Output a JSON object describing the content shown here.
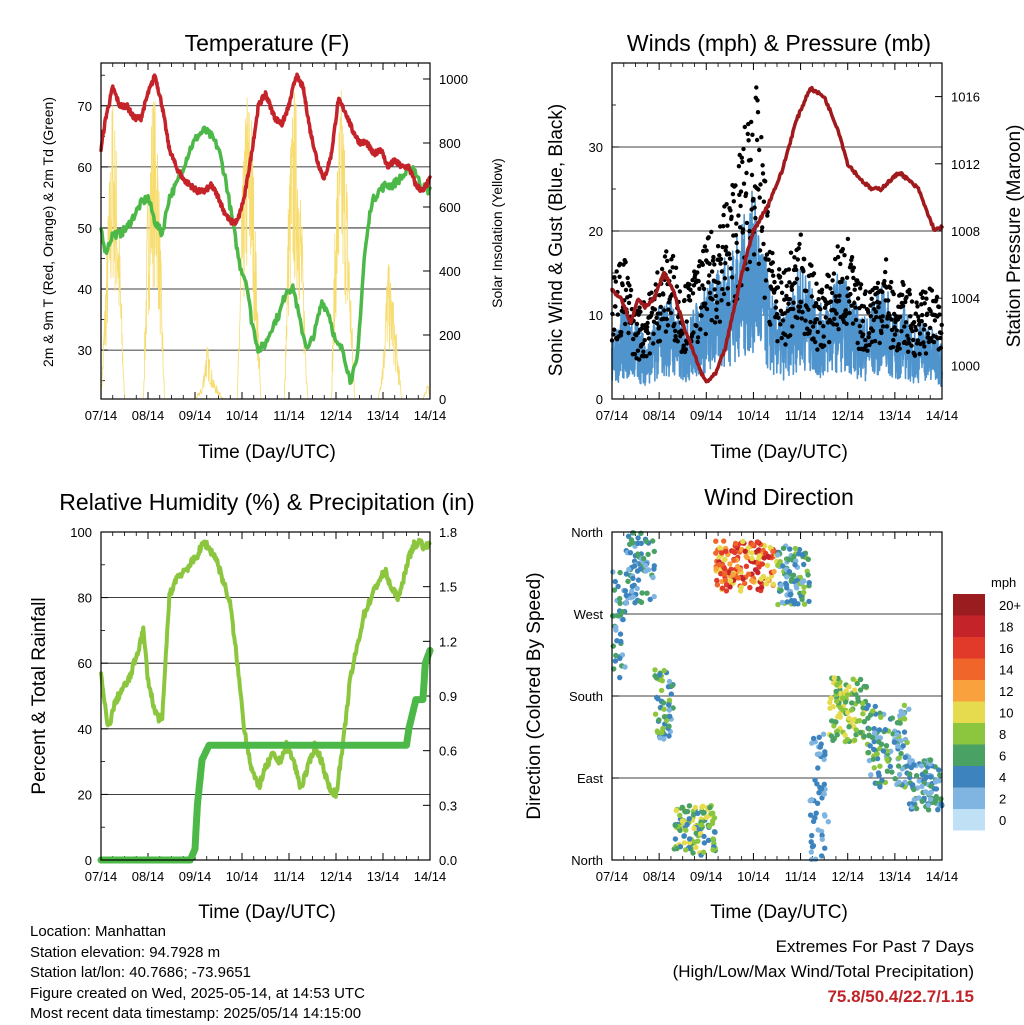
{
  "charts": {
    "temperature": {
      "title": "Temperature (F)",
      "xlabel": "Time (Day/UTC)",
      "ylabel_left": "2m & 9m T (Red, Orange) & 2m Td (Green)",
      "ylabel_right": "Solar Insolation (Yellow)"
    },
    "winds": {
      "title": "Winds (mph) & Pressure (mb)",
      "xlabel": "Time (Day/UTC)",
      "ylabel_left": "Sonic Wind & Gust (Blue, Black)",
      "ylabel_right": "Station Pressure (Maroon)"
    },
    "humidity": {
      "title": "Relative Humidity (%) & Precipitation (in)",
      "xlabel": "Time (Day/UTC)",
      "ylabel_left": "Percent & Total Rainfall"
    },
    "direction": {
      "title": "Wind Direction",
      "xlabel": "Time (Day/UTC)",
      "ylabel_left": "Direction (Colored By Speed)",
      "legend_title": "mph"
    }
  },
  "chart_data": [
    {
      "type": "line",
      "title": "Temperature (F)",
      "xlabel": "Time (Day/UTC)",
      "ylabel": "2m & 9m T (Red, Orange) & 2m Td (Green)",
      "y2label": "Solar Insolation (Yellow)",
      "x_ticks": [
        "07/14",
        "08/14",
        "09/14",
        "10/14",
        "11/14",
        "12/14",
        "13/14",
        "14/14"
      ],
      "xlim": [
        0,
        7
      ],
      "ylim": [
        22,
        77
      ],
      "y_ticks": [
        30,
        40,
        50,
        60,
        70
      ],
      "y2lim": [
        0,
        1050
      ],
      "y2_ticks": [
        0,
        200,
        400,
        600,
        800,
        1000
      ],
      "colors": {
        "temperature": "#c4232a",
        "dewpoint": "#4cb848",
        "insolation": "#f7dc6f"
      },
      "series": [
        {
          "name": "2m T",
          "axis": "left",
          "x": [
            0,
            0.1,
            0.25,
            0.4,
            0.55,
            0.7,
            0.85,
            1.0,
            1.15,
            1.3,
            1.45,
            1.6,
            1.75,
            1.9,
            2.05,
            2.2,
            2.35,
            2.5,
            2.6,
            2.75,
            2.9,
            3.05,
            3.2,
            3.35,
            3.5,
            3.7,
            3.85,
            4.0,
            4.15,
            4.3,
            4.45,
            4.6,
            4.75,
            4.9,
            5.05,
            5.2,
            5.35,
            5.5,
            5.65,
            5.8,
            5.95,
            6.1,
            6.25,
            6.4,
            6.55,
            6.7,
            6.85,
            7.0
          ],
          "y": [
            63,
            68,
            73,
            70,
            70,
            68,
            68,
            72,
            75,
            70,
            63,
            60,
            58,
            57,
            56,
            56,
            57,
            55,
            53,
            51,
            51,
            55,
            62,
            70,
            72,
            68,
            67,
            70,
            75,
            73,
            66,
            61,
            58,
            62,
            71,
            69,
            66,
            64,
            64,
            62,
            63,
            60,
            61,
            60,
            60,
            57,
            56,
            58
          ]
        },
        {
          "name": "2m Td",
          "axis": "left",
          "x": [
            0,
            0.1,
            0.25,
            0.4,
            0.55,
            0.7,
            0.85,
            1.0,
            1.15,
            1.3,
            1.45,
            1.6,
            1.75,
            1.9,
            2.05,
            2.2,
            2.35,
            2.5,
            2.65,
            2.8,
            2.95,
            3.1,
            3.2,
            3.35,
            3.5,
            3.65,
            3.8,
            3.95,
            4.1,
            4.25,
            4.4,
            4.55,
            4.7,
            4.85,
            5.0,
            5.15,
            5.3,
            5.45,
            5.6,
            5.75,
            5.9,
            6.05,
            6.2,
            6.35,
            6.5,
            6.65,
            6.8,
            7.0
          ],
          "y": [
            50,
            46,
            49,
            49,
            50,
            52,
            54,
            55,
            51,
            49,
            55,
            57,
            60,
            63,
            65,
            66,
            65,
            63,
            58,
            51,
            44,
            41,
            35,
            30,
            31,
            34,
            36,
            40,
            40,
            34,
            30,
            33,
            38,
            36,
            31,
            30,
            25,
            28,
            45,
            54,
            56,
            57,
            57,
            58,
            59,
            60,
            57,
            56
          ]
        },
        {
          "name": "Solar Insolation",
          "axis": "right",
          "x": [
            0,
            0.15,
            0.25,
            0.35,
            0.5,
            0.9,
            1.0,
            1.1,
            1.2,
            1.35,
            1.5,
            2.0,
            2.15,
            2.25,
            2.4,
            2.6,
            2.9,
            3.0,
            3.1,
            3.2,
            3.4,
            3.6,
            3.9,
            4.0,
            4.1,
            4.2,
            4.4,
            4.9,
            5.0,
            5.1,
            5.2,
            5.4,
            5.9,
            6.0,
            6.1,
            6.2,
            6.4,
            6.85,
            6.95,
            7.0
          ],
          "y": [
            0,
            600,
            1000,
            750,
            0,
            0,
            700,
            1000,
            900,
            0,
            0,
            0,
            40,
            180,
            60,
            0,
            0,
            650,
            1000,
            950,
            0,
            0,
            0,
            750,
            1000,
            900,
            0,
            0,
            700,
            1000,
            850,
            0,
            0,
            150,
            450,
            350,
            0,
            0,
            60,
            0
          ]
        }
      ]
    },
    {
      "type": "line",
      "title": "Winds (mph) & Pressure (mb)",
      "xlabel": "Time (Day/UTC)",
      "ylabel": "Sonic Wind & Gust (Blue, Black)",
      "y2label": "Station Pressure (Maroon)",
      "x_ticks": [
        "07/14",
        "08/14",
        "09/14",
        "10/14",
        "11/14",
        "12/14",
        "13/14",
        "14/14"
      ],
      "xlim": [
        0,
        7
      ],
      "ylim": [
        0,
        40
      ],
      "y_ticks": [
        0,
        10,
        20,
        30
      ],
      "y2lim": [
        998,
        1018
      ],
      "y2_ticks": [
        1000,
        1004,
        1008,
        1012,
        1016
      ],
      "colors": {
        "wind": "#4f94cd",
        "gust": "#000000",
        "pressure": "#a0191d"
      },
      "series": [
        {
          "name": "Sonic Wind",
          "axis": "left",
          "x": [
            0,
            0.25,
            0.5,
            0.75,
            1.0,
            1.25,
            1.5,
            1.75,
            2.0,
            2.25,
            2.5,
            2.75,
            2.9,
            3.0,
            3.2,
            3.4,
            3.6,
            3.8,
            4.0,
            4.2,
            4.4,
            4.6,
            4.8,
            5.0,
            5.2,
            5.4,
            5.6,
            5.8,
            6.0,
            6.2,
            6.4,
            6.6,
            6.8,
            7.0
          ],
          "y": [
            5,
            8,
            7,
            5,
            8,
            9,
            6,
            8,
            10,
            11,
            13,
            15,
            17,
            18,
            13,
            9,
            7,
            9,
            12,
            10,
            8,
            9,
            11,
            10,
            8,
            7,
            9,
            10,
            7,
            8,
            6,
            7,
            6,
            5
          ]
        },
        {
          "name": "Gust",
          "axis": "left",
          "x": [
            0,
            0.25,
            0.5,
            0.75,
            1.0,
            1.25,
            1.5,
            1.75,
            2.0,
            2.25,
            2.5,
            2.75,
            2.9,
            3.0,
            3.2,
            3.4,
            3.6,
            3.8,
            4.0,
            4.2,
            4.4,
            4.6,
            4.8,
            5.0,
            5.2,
            5.4,
            5.6,
            5.8,
            6.0,
            6.2,
            6.4,
            6.6,
            6.8,
            7.0
          ],
          "y": [
            14,
            16,
            10,
            11,
            15,
            17,
            12,
            14,
            17,
            20,
            23,
            28,
            32,
            37,
            27,
            17,
            13,
            16,
            18,
            15,
            12,
            14,
            17,
            18,
            13,
            12,
            14,
            16,
            11,
            13,
            11,
            12,
            12,
            10
          ]
        },
        {
          "name": "Station Pressure",
          "axis": "right",
          "x": [
            0,
            0.2,
            0.4,
            0.55,
            0.7,
            0.9,
            1.1,
            1.3,
            1.5,
            1.7,
            1.9,
            2.0,
            2.2,
            2.4,
            2.6,
            2.8,
            3.0,
            3.3,
            3.6,
            3.9,
            4.2,
            4.5,
            4.8,
            5.0,
            5.3,
            5.5,
            5.7,
            5.9,
            6.1,
            6.3,
            6.5,
            6.7,
            6.85,
            7.0
          ],
          "y": [
            1004.5,
            1004,
            1002.5,
            1004,
            1003.5,
            1004,
            1005.5,
            1004.5,
            1002.5,
            1001,
            999.5,
            999,
            999.5,
            1001,
            1003.5,
            1006,
            1008,
            1009.5,
            1011.5,
            1014.5,
            1016.5,
            1016,
            1014,
            1012,
            1011,
            1010.5,
            1010.5,
            1011,
            1011.5,
            1011,
            1010.5,
            1009,
            1008,
            1008.3
          ]
        }
      ]
    },
    {
      "type": "line",
      "title": "Relative Humidity (%) & Precipitation (in)",
      "xlabel": "Time (Day/UTC)",
      "ylabel": "Percent & Total Rainfall",
      "x_ticks": [
        "07/14",
        "08/14",
        "09/14",
        "10/14",
        "11/14",
        "12/14",
        "13/14",
        "14/14"
      ],
      "xlim": [
        0,
        7
      ],
      "ylim": [
        0,
        100
      ],
      "y_ticks": [
        0,
        20,
        40,
        60,
        80,
        100
      ],
      "y2lim": [
        0,
        1.8
      ],
      "y2_ticks": [
        "0.0",
        "0.3",
        "0.6",
        "0.9",
        "1.2",
        "1.5",
        "1.8"
      ],
      "colors": {
        "humidity": "#8cc63f",
        "precipitation": "#4cb848"
      },
      "series": [
        {
          "name": "Relative Humidity",
          "axis": "left",
          "x": [
            0,
            0.15,
            0.3,
            0.45,
            0.6,
            0.75,
            0.9,
            1.0,
            1.15,
            1.3,
            1.45,
            1.6,
            1.75,
            1.9,
            2.05,
            2.2,
            2.3,
            2.45,
            2.6,
            2.75,
            2.9,
            3.05,
            3.2,
            3.35,
            3.5,
            3.65,
            3.8,
            3.95,
            4.1,
            4.25,
            4.4,
            4.55,
            4.7,
            4.85,
            5.0,
            5.15,
            5.3,
            5.45,
            5.6,
            5.75,
            5.9,
            6.05,
            6.2,
            6.35,
            6.5,
            6.65,
            6.8,
            6.9,
            7.0
          ],
          "y": [
            56,
            40,
            48,
            52,
            55,
            62,
            70,
            55,
            45,
            42,
            80,
            86,
            88,
            90,
            93,
            97,
            95,
            92,
            85,
            78,
            60,
            40,
            28,
            22,
            28,
            32,
            30,
            35,
            30,
            22,
            28,
            35,
            30,
            22,
            20,
            35,
            55,
            65,
            75,
            80,
            85,
            88,
            82,
            80,
            90,
            96,
            97,
            95,
            98
          ]
        },
        {
          "name": "Total Precipitation",
          "axis": "right",
          "x": [
            0,
            1.5,
            1.9,
            2.0,
            2.05,
            2.15,
            2.3,
            2.5,
            3.0,
            6.5,
            6.55,
            6.7,
            6.85,
            6.9,
            7.0
          ],
          "y": [
            0,
            0,
            0,
            0.06,
            0.3,
            0.55,
            0.63,
            0.63,
            0.63,
            0.63,
            0.72,
            0.88,
            0.88,
            1.08,
            1.15
          ]
        }
      ]
    },
    {
      "type": "scatter",
      "title": "Wind Direction",
      "xlabel": "Time (Day/UTC)",
      "ylabel": "Direction (Colored By Speed)",
      "x_ticks": [
        "07/14",
        "08/14",
        "09/14",
        "10/14",
        "11/14",
        "12/14",
        "13/14",
        "14/14"
      ],
      "xlim": [
        0,
        7
      ],
      "ylim": [
        0,
        360
      ],
      "y_ticks": [
        "North",
        "East",
        "South",
        "West",
        "North"
      ],
      "y_tick_values": [
        0,
        90,
        180,
        270,
        360
      ],
      "legend_title": "mph",
      "color_scale": [
        {
          "label": "20+",
          "color": "#9b1c1f"
        },
        {
          "label": "18",
          "color": "#c4232a"
        },
        {
          "label": "16",
          "color": "#e23a2a"
        },
        {
          "label": "14",
          "color": "#f06529"
        },
        {
          "label": "12",
          "color": "#f9a13c"
        },
        {
          "label": "10",
          "color": "#e6db4f"
        },
        {
          "label": "8",
          "color": "#8cc63f"
        },
        {
          "label": "6",
          "color": "#4aa164"
        },
        {
          "label": "4",
          "color": "#3d84bf"
        },
        {
          "label": "2",
          "color": "#7fb5e0"
        },
        {
          "label": "0",
          "color": "#bfe0f5"
        }
      ],
      "clusters": [
        {
          "x": [
            0.0,
            0.3
          ],
          "dir": [
            200,
            320
          ],
          "speed": [
            2,
            8
          ]
        },
        {
          "x": [
            0.3,
            0.9
          ],
          "dir": [
            280,
            360
          ],
          "speed": [
            2,
            8
          ]
        },
        {
          "x": [
            0.9,
            1.3
          ],
          "dir": [
            130,
            210
          ],
          "speed": [
            2,
            10
          ]
        },
        {
          "x": [
            1.3,
            2.2
          ],
          "dir": [
            5,
            60
          ],
          "speed": [
            4,
            12
          ]
        },
        {
          "x": [
            2.2,
            3.5
          ],
          "dir": [
            295,
            350
          ],
          "speed": [
            10,
            20
          ]
        },
        {
          "x": [
            3.5,
            4.2
          ],
          "dir": [
            280,
            345
          ],
          "speed": [
            2,
            10
          ]
        },
        {
          "x": [
            4.2,
            4.6
          ],
          "dir": [
            0,
            140
          ],
          "speed": [
            2,
            6
          ]
        },
        {
          "x": [
            4.6,
            5.4
          ],
          "dir": [
            130,
            200
          ],
          "speed": [
            6,
            12
          ]
        },
        {
          "x": [
            5.4,
            6.3
          ],
          "dir": [
            80,
            170
          ],
          "speed": [
            2,
            10
          ]
        },
        {
          "x": [
            6.3,
            7.0
          ],
          "dir": [
            55,
            110
          ],
          "speed": [
            2,
            8
          ]
        }
      ]
    }
  ],
  "info": {
    "location": "Location: Manhattan",
    "elevation": "Station elevation: 94.7928 m",
    "latlon": "Station lat/lon: 40.7686; -73.9651",
    "created": "Figure created on Wed, 2025-05-14, at 14:53 UTC",
    "recent": "Most recent data timestamp: 2025/05/14 14:15:00"
  },
  "extremes": {
    "heading": "Extremes For Past 7 Days",
    "subheading": "(High/Low/Max Wind/Total Precipitation)",
    "values": "75.8/50.4/22.7/1.15",
    "color": "#c02428"
  }
}
